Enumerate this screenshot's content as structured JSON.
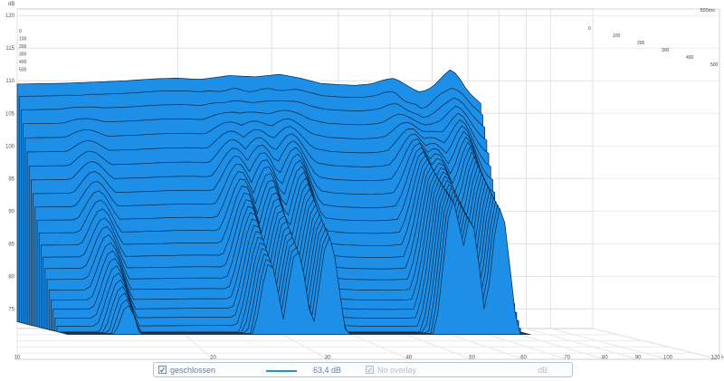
{
  "chart_data": {
    "type": "area",
    "subtype": "waterfall-3d",
    "ylabel": "dB",
    "ylim": [
      72,
      121
    ],
    "y_ticks": [
      120,
      115,
      110,
      105,
      100,
      95,
      90,
      85,
      80,
      75
    ],
    "xlim": [
      10,
      120
    ],
    "x_scale": "log",
    "x_ticks": [
      {
        "v": 10,
        "label": "10"
      },
      {
        "v": 20,
        "label": "20"
      },
      {
        "v": 30,
        "label": "30"
      },
      {
        "v": 40,
        "label": "40"
      },
      {
        "v": 50,
        "label": "50"
      },
      {
        "v": 60,
        "label": "60"
      },
      {
        "v": 70,
        "label": "70"
      },
      {
        "v": 80,
        "label": "80"
      },
      {
        "v": 90,
        "label": "90"
      },
      {
        "v": 100,
        "label": "100"
      },
      {
        "v": 120,
        "label": "120 Hz"
      }
    ],
    "z_ticks_front": [
      "0",
      "100",
      "200",
      "300",
      "400",
      "500"
    ],
    "z_ticks_back": [
      "0",
      "100",
      "200",
      "300",
      "400",
      "500"
    ],
    "z_end_label": "500ms",
    "grid": true,
    "fill_color": "#1e8fe6",
    "line_color": "#0a2744",
    "front_slice": [
      [
        10,
        109.5
      ],
      [
        12,
        109.6
      ],
      [
        14,
        109.8
      ],
      [
        16,
        110.0
      ],
      [
        18,
        110.3
      ],
      [
        20,
        110.4
      ],
      [
        22,
        110.2
      ],
      [
        25,
        110.8
      ],
      [
        28,
        110.6
      ],
      [
        31,
        111.0
      ],
      [
        34,
        110.4
      ],
      [
        37,
        109.6
      ],
      [
        40,
        109.4
      ],
      [
        43,
        109.3
      ],
      [
        46,
        109.5
      ],
      [
        49,
        110.2
      ],
      [
        51,
        110.4
      ],
      [
        53,
        109.6
      ],
      [
        55,
        108.8
      ],
      [
        57,
        108.2
      ],
      [
        60,
        109.0
      ],
      [
        63,
        110.8
      ],
      [
        65,
        111.8
      ],
      [
        67,
        110.8
      ],
      [
        70,
        108.3
      ],
      [
        74,
        106.5
      ]
    ],
    "decay_notes": "Broadband content decays to ~75 dB over the 500 ms window except for resonant ridges near 13 Hz, 24-33 Hz, 52-58 Hz and 64-67 Hz."
  },
  "legend": {
    "checkbox_mark": "✓",
    "series_name": "geschlossen",
    "series_value": "63,4 dB",
    "overlay_label": "No overlay",
    "overlay_unit": "dB"
  }
}
